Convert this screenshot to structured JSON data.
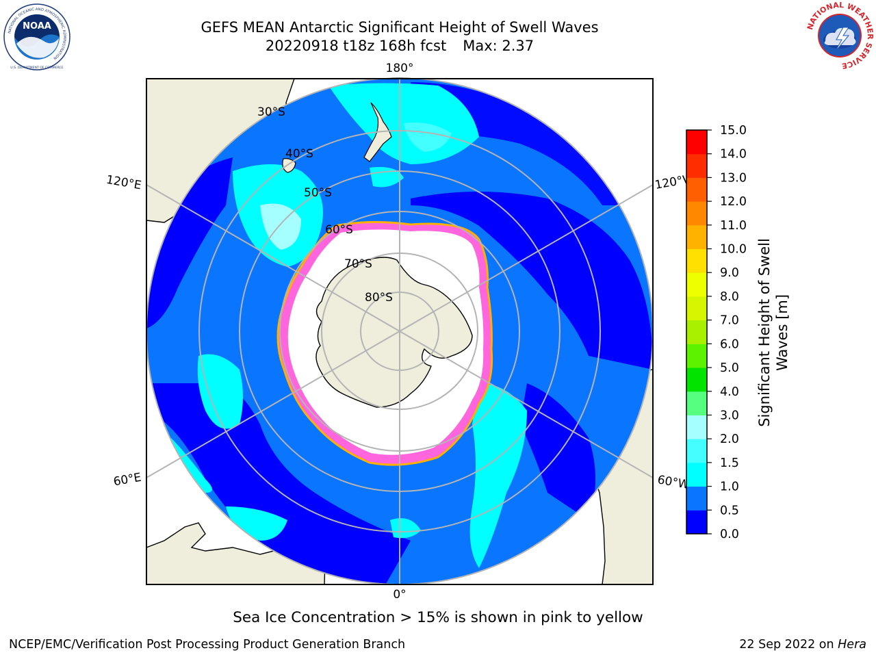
{
  "header": {
    "title": "GEFS MEAN Antarctic Significant Height of Swell Waves",
    "subtitle_date": "20220918 t18z 168h fcst",
    "subtitle_max": "Max: 2.37"
  },
  "logos": {
    "left": {
      "name": "NOAA",
      "ring_text": "NATIONAL OCEANIC AND ATMOSPHERIC ADMINISTRATION",
      "bottom_text": "U.S. DEPARTMENT OF COMMERCE"
    },
    "right": {
      "ring_text": "NATIONAL WEATHER SERVICE"
    }
  },
  "map": {
    "longitude_labels": {
      "top": "180°",
      "bottom": "0°",
      "upper_left": "120°E",
      "lower_left": "60°E",
      "upper_right": "120°W",
      "lower_right": "60°W"
    },
    "latitude_labels": [
      "30°S",
      "40°S",
      "50°S",
      "60°S",
      "70°S",
      "80°S"
    ]
  },
  "colorbar": {
    "label_line1": "Significant Height of Swell",
    "label_line2": "Waves [m]",
    "ticks": [
      "0.0",
      "0.5",
      "1.0",
      "1.5",
      "2.0",
      "3.0",
      "4.0",
      "5.0",
      "6.0",
      "7.0",
      "8.0",
      "9.0",
      "10.0",
      "11.0",
      "12.0",
      "13.0",
      "14.0",
      "15.0"
    ],
    "colors": [
      "#0000ff",
      "#0a75ff",
      "#00ffff",
      "#44ffff",
      "#a6ffff",
      "#57ff80",
      "#00e400",
      "#5df200",
      "#a8f000",
      "#d6f500",
      "#eeff00",
      "#ffe000",
      "#ffb200",
      "#ff8800",
      "#ff5f00",
      "#ff2d00",
      "#ff0000"
    ]
  },
  "note": "Sea Ice Concentration > 15% is shown in pink to yellow",
  "footer": {
    "left": "NCEP/EMC/Verification Post Processing Product Generation Branch",
    "right_date": "22 Sep 2022 on ",
    "right_host": "Hera"
  }
}
